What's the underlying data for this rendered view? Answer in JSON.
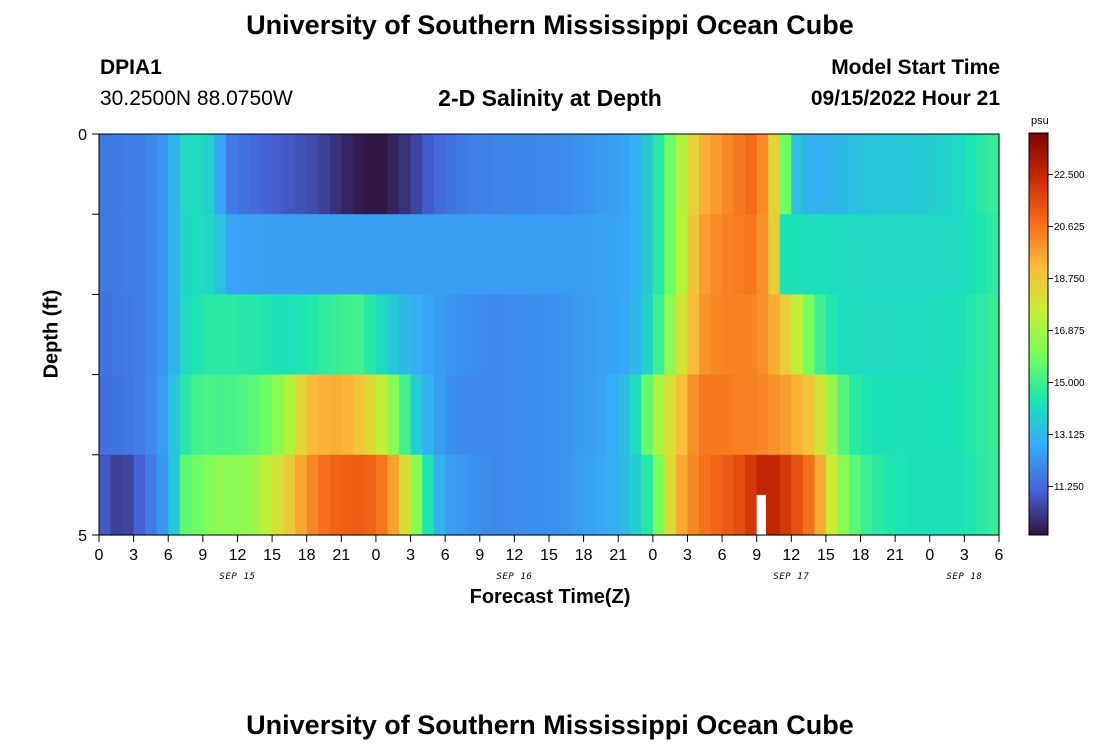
{
  "header": {
    "title": "University of Southern Mississippi Ocean Cube",
    "station_id": "DPIA1",
    "coordinates": "30.2500N  88.0750W",
    "chart_title": "2-D Salinity at Depth",
    "model_start_label": "Model Start Time",
    "model_start_value": "09/15/2022 Hour 21"
  },
  "footer": {
    "title": "University of Southern Mississippi Ocean Cube"
  },
  "colors": {
    "colormap": [
      "#30123b",
      "#4662d7",
      "#36aaf9",
      "#1ae4b6",
      "#72fe5e",
      "#c7ef34",
      "#fabb3a",
      "#f66b19",
      "#ca2a04",
      "#7a0403"
    ],
    "gap": "#ffffff"
  },
  "chart_data": {
    "type": "heatmap",
    "title": "2-D Salinity at Depth",
    "xlabel": "Forecast Time(Z)",
    "ylabel": "Depth (ft)",
    "x_unit": "hours since 09/15/2022 00Z",
    "x_range": [
      0,
      78
    ],
    "x_ticks": [
      0,
      3,
      6,
      9,
      12,
      15,
      18,
      21,
      24,
      27,
      30,
      33,
      36,
      39,
      42,
      45,
      48,
      51,
      54,
      57,
      60,
      63,
      66,
      69,
      72,
      75,
      78
    ],
    "x_tick_labels": [
      "0",
      "3",
      "6",
      "9",
      "12",
      "15",
      "18",
      "21",
      "0",
      "3",
      "6",
      "9",
      "12",
      "15",
      "18",
      "21",
      "0",
      "3",
      "6",
      "9",
      "12",
      "15",
      "18",
      "21",
      "0",
      "3",
      "6"
    ],
    "date_labels": [
      {
        "label": "SEP 15",
        "hour": 12
      },
      {
        "label": "SEP 16",
        "hour": 36
      },
      {
        "label": "SEP 17",
        "hour": 60
      },
      {
        "label": "SEP 18",
        "hour": 75
      }
    ],
    "y_range": [
      0,
      5
    ],
    "y_ticks": [
      0,
      1,
      2,
      3,
      4,
      5
    ],
    "y_tick_labels": [
      "0",
      "",
      "",
      "",
      "",
      "5"
    ],
    "depth_layers": [
      0.5,
      1.5,
      2.5,
      3.5,
      4.5
    ],
    "colorbar": {
      "unit": "psu",
      "min": 9.5,
      "max": 24.0,
      "ticks": [
        22.5,
        20.625,
        18.75,
        16.875,
        15.0,
        13.125,
        11.25
      ],
      "tick_labels": [
        "22.500",
        "20.625",
        "18.750",
        "16.875",
        "15.000",
        "13.125",
        "11.250"
      ]
    },
    "missing": [
      {
        "hour": 57.5,
        "depth_from": 4.5,
        "depth_to": 5.0
      }
    ],
    "profiles": [
      {
        "depth": 0.5,
        "points": [
          [
            0,
            11.6
          ],
          [
            4,
            11.8
          ],
          [
            5.5,
            12.3
          ],
          [
            6.5,
            13.0
          ],
          [
            7.5,
            14.0
          ],
          [
            9,
            14.2
          ],
          [
            10,
            13.4
          ],
          [
            11,
            11.8
          ],
          [
            14,
            11.2
          ],
          [
            19,
            10.6
          ],
          [
            21,
            10.0
          ],
          [
            22.5,
            9.7
          ],
          [
            23.5,
            9.6
          ],
          [
            24,
            9.5
          ],
          [
            25,
            9.7
          ],
          [
            27,
            10.3
          ],
          [
            29,
            11.2
          ],
          [
            32,
            11.8
          ],
          [
            40,
            12.0
          ],
          [
            46,
            12.6
          ],
          [
            48,
            14.0
          ],
          [
            50,
            16.5
          ],
          [
            52,
            19.2
          ],
          [
            54,
            20.0
          ],
          [
            57,
            21.0
          ],
          [
            58.5,
            18.5
          ],
          [
            59.3,
            16.6
          ],
          [
            60.2,
            13.5
          ],
          [
            62,
            12.8
          ],
          [
            66,
            13.4
          ],
          [
            71,
            13.6
          ],
          [
            74,
            13.9
          ],
          [
            76,
            14.5
          ],
          [
            78,
            15.0
          ]
        ]
      },
      {
        "depth": 1.5,
        "points": [
          [
            0,
            11.6
          ],
          [
            4,
            11.8
          ],
          [
            5.5,
            12.3
          ],
          [
            6.5,
            13.0
          ],
          [
            7.5,
            13.9
          ],
          [
            9,
            14.3
          ],
          [
            10.5,
            13.4
          ],
          [
            11,
            12.6
          ],
          [
            14,
            12.5
          ],
          [
            40,
            12.4
          ],
          [
            46,
            12.6
          ],
          [
            48,
            14.0
          ],
          [
            50,
            16.5
          ],
          [
            52,
            19.6
          ],
          [
            54,
            20.3
          ],
          [
            57,
            20.6
          ],
          [
            58,
            19.5
          ],
          [
            59,
            17.8
          ],
          [
            59.5,
            14.3
          ],
          [
            66,
            14.0
          ],
          [
            71,
            14.0
          ],
          [
            74,
            14.0
          ],
          [
            76,
            14.3
          ],
          [
            78,
            14.8
          ]
        ]
      },
      {
        "depth": 2.5,
        "points": [
          [
            0,
            11.4
          ],
          [
            4,
            11.8
          ],
          [
            5.5,
            12.3
          ],
          [
            6.5,
            13.0
          ],
          [
            7.5,
            14.0
          ],
          [
            9,
            14.6
          ],
          [
            11,
            14.7
          ],
          [
            14,
            14.5
          ],
          [
            16,
            14.2
          ],
          [
            19,
            14.6
          ],
          [
            21,
            15.0
          ],
          [
            22.5,
            15.1
          ],
          [
            24,
            14.3
          ],
          [
            26,
            13.3
          ],
          [
            28,
            12.7
          ],
          [
            30,
            12.3
          ],
          [
            34,
            12.0
          ],
          [
            40,
            12.2
          ],
          [
            46,
            12.7
          ],
          [
            48,
            14.3
          ],
          [
            50,
            17.2
          ],
          [
            52,
            19.8
          ],
          [
            54,
            20.3
          ],
          [
            57,
            20.3
          ],
          [
            59,
            19.2
          ],
          [
            60.5,
            17.4
          ],
          [
            62,
            15.3
          ],
          [
            64,
            14.2
          ],
          [
            68,
            14.0
          ],
          [
            71,
            14.1
          ],
          [
            74,
            14.2
          ],
          [
            76,
            14.6
          ],
          [
            78,
            15.0
          ]
        ]
      },
      {
        "depth": 3.5,
        "points": [
          [
            0,
            11.4
          ],
          [
            2,
            11.5
          ],
          [
            4,
            11.8
          ],
          [
            5.5,
            12.4
          ],
          [
            6.5,
            13.4
          ],
          [
            7.5,
            14.6
          ],
          [
            9,
            15.3
          ],
          [
            11,
            15.1
          ],
          [
            13,
            15.4
          ],
          [
            15,
            16.0
          ],
          [
            17,
            17.6
          ],
          [
            18,
            19.2
          ],
          [
            21,
            19.5
          ],
          [
            23,
            18.7
          ],
          [
            25,
            17.0
          ],
          [
            26.5,
            15.1
          ],
          [
            27.5,
            13.7
          ],
          [
            29,
            12.6
          ],
          [
            31,
            12.0
          ],
          [
            34,
            12.0
          ],
          [
            40,
            12.2
          ],
          [
            44,
            12.6
          ],
          [
            46,
            13.4
          ],
          [
            48,
            16.5
          ],
          [
            50,
            18.6
          ],
          [
            52,
            20.5
          ],
          [
            54,
            20.5
          ],
          [
            57,
            20.3
          ],
          [
            59,
            19.9
          ],
          [
            61,
            19.2
          ],
          [
            62,
            18.6
          ],
          [
            63,
            17.4
          ],
          [
            64,
            16.0
          ],
          [
            65,
            14.8
          ],
          [
            67,
            14.3
          ],
          [
            71,
            14.2
          ],
          [
            74,
            14.3
          ],
          [
            76,
            14.6
          ],
          [
            78,
            15.0
          ]
        ]
      },
      {
        "depth": 4.5,
        "points": [
          [
            0,
            11.2
          ],
          [
            1,
            10.6
          ],
          [
            2,
            10.3
          ],
          [
            3,
            10.8
          ],
          [
            4,
            11.4
          ],
          [
            5.5,
            12.3
          ],
          [
            6.5,
            13.5
          ],
          [
            7.5,
            15.6
          ],
          [
            9,
            16.0
          ],
          [
            10.5,
            16.5
          ],
          [
            12,
            16.3
          ],
          [
            13,
            16.6
          ],
          [
            14,
            17.0
          ],
          [
            16,
            18.3
          ],
          [
            18,
            20.0
          ],
          [
            20,
            20.9
          ],
          [
            23,
            21.2
          ],
          [
            25,
            20.4
          ],
          [
            26,
            19.0
          ],
          [
            27,
            17.3
          ],
          [
            28,
            15.4
          ],
          [
            29,
            13.5
          ],
          [
            30,
            12.5
          ],
          [
            34,
            12.0
          ],
          [
            40,
            12.2
          ],
          [
            44,
            12.7
          ],
          [
            46,
            13.3
          ],
          [
            48,
            15.0
          ],
          [
            50,
            19.2
          ],
          [
            52,
            20.5
          ],
          [
            55,
            21.3
          ],
          [
            57,
            22.3
          ],
          [
            58,
            22.8
          ],
          [
            60,
            21.8
          ],
          [
            62,
            20.3
          ],
          [
            63,
            18.7
          ],
          [
            64,
            16.8
          ],
          [
            66,
            15.1
          ],
          [
            68,
            14.5
          ],
          [
            71,
            14.2
          ],
          [
            74,
            14.2
          ],
          [
            76,
            14.5
          ],
          [
            78,
            15.0
          ]
        ]
      }
    ]
  }
}
